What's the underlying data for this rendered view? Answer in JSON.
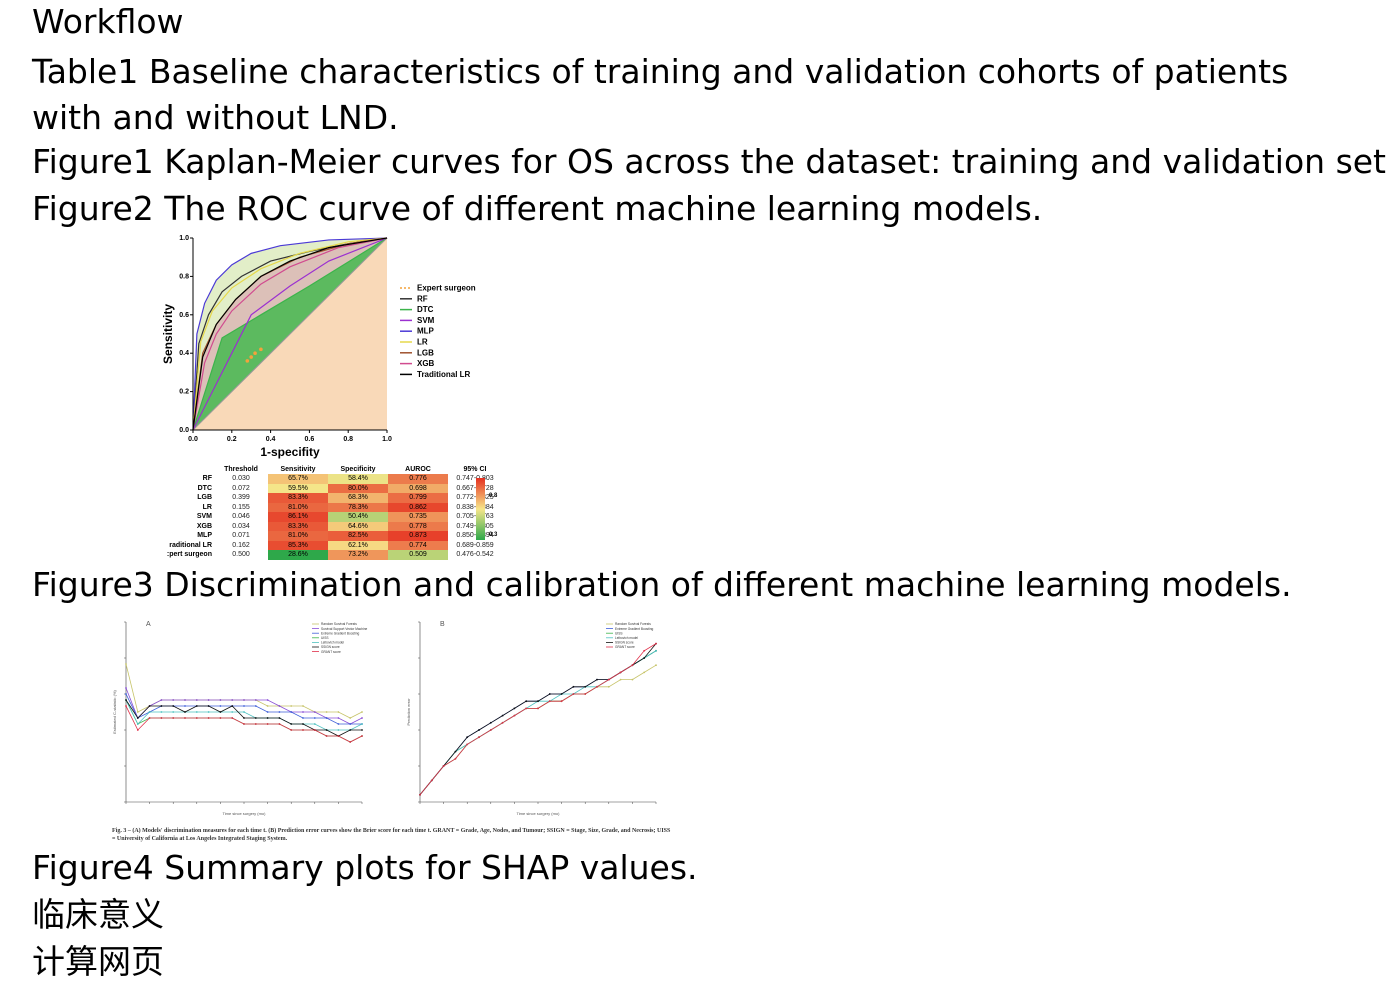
{
  "lines": {
    "workflow": "Workflow",
    "table1": "Table1 Baseline characteristics of training and validation cohorts of patients with and without LND.",
    "figure1": "Figure1 Kaplan-Meier curves for OS across the dataset: training and validation set.",
    "figure2": "Figure2 The ROC curve of different machine learning models.",
    "figure3": "Figure3 Discrimination and calibration of different machine learning models.",
    "figure4": "Figure4 Summary plots for SHAP values.",
    "clinical": "临床意义",
    "calc": "计算网页"
  },
  "chart_data": [
    {
      "type": "line",
      "title": "",
      "xlabel": "1-specifity",
      "ylabel": "Sensitivity",
      "xlim": [
        0,
        1
      ],
      "ylim": [
        0,
        1
      ],
      "xticks": [
        "0.0",
        "0.2",
        "0.4",
        "0.6",
        "0.8",
        "1.0"
      ],
      "yticks": [
        "0.0",
        "0.2",
        "0.4",
        "0.6",
        "0.8",
        "1.0"
      ],
      "legend_position": "right",
      "colors": {
        "Expert surgeon": "#f4a23c",
        "RF": "#333333",
        "DTC": "#3cb44b",
        "SVM": "#9b30d0",
        "MLP": "#4b3ad6",
        "LR": "#e6d84a",
        "LGB": "#a0522d",
        "XGB": "#d14b8f",
        "Traditional LR": "#000000"
      },
      "series": [
        {
          "name": "Expert surgeon",
          "x": [
            0.28,
            0.3,
            0.32,
            0.35
          ],
          "y": [
            0.36,
            0.38,
            0.4,
            0.42
          ]
        },
        {
          "name": "RF",
          "x": [
            0,
            0.03,
            0.08,
            0.15,
            0.25,
            0.4,
            0.6,
            0.8,
            1
          ],
          "y": [
            0,
            0.45,
            0.6,
            0.72,
            0.8,
            0.88,
            0.93,
            0.97,
            1
          ]
        },
        {
          "name": "DTC",
          "x": [
            0,
            0.15,
            0.35,
            0.6,
            1
          ],
          "y": [
            0,
            0.48,
            0.6,
            0.75,
            1
          ]
        },
        {
          "name": "SVM",
          "x": [
            0,
            0.1,
            0.2,
            0.3,
            0.5,
            0.7,
            1
          ],
          "y": [
            0,
            0.2,
            0.4,
            0.6,
            0.75,
            0.88,
            1
          ]
        },
        {
          "name": "MLP",
          "x": [
            0,
            0.02,
            0.06,
            0.12,
            0.2,
            0.3,
            0.45,
            0.7,
            1
          ],
          "y": [
            0,
            0.5,
            0.66,
            0.78,
            0.86,
            0.92,
            0.96,
            0.99,
            1
          ]
        },
        {
          "name": "LR",
          "x": [
            0,
            0.04,
            0.1,
            0.2,
            0.35,
            0.55,
            0.8,
            1
          ],
          "y": [
            0,
            0.46,
            0.62,
            0.74,
            0.84,
            0.92,
            0.98,
            1
          ]
        },
        {
          "name": "LGB",
          "x": [
            0,
            0.05,
            0.12,
            0.22,
            0.35,
            0.55,
            0.8,
            1
          ],
          "y": [
            0,
            0.4,
            0.55,
            0.68,
            0.8,
            0.9,
            0.97,
            1
          ]
        },
        {
          "name": "XGB",
          "x": [
            0,
            0.06,
            0.12,
            0.2,
            0.35,
            0.5,
            0.75,
            1
          ],
          "y": [
            0,
            0.35,
            0.5,
            0.62,
            0.76,
            0.85,
            0.95,
            1
          ]
        },
        {
          "name": "Traditional LR",
          "x": [
            0,
            0.05,
            0.12,
            0.22,
            0.35,
            0.5,
            0.7,
            1
          ],
          "y": [
            0,
            0.38,
            0.55,
            0.68,
            0.8,
            0.88,
            0.95,
            1
          ]
        }
      ]
    },
    {
      "type": "table",
      "columns": [
        "",
        "Threshold",
        "Sensitivity",
        "Specificity",
        "AUROC",
        "95% CI"
      ],
      "colorbar_ticks": [
        "0.8",
        "0.3"
      ],
      "rows": [
        [
          "RF",
          "0.030",
          "65.7%",
          "58.4%",
          "0.776",
          "0.747-0.803"
        ],
        [
          "DTC",
          "0.072",
          "59.5%",
          "80.0%",
          "0.698",
          "0.667-0.728"
        ],
        [
          "LGB",
          "0.399",
          "83.3%",
          "68.3%",
          "0.799",
          "0.772-0.825"
        ],
        [
          "LR",
          "0.155",
          "81.0%",
          "78.3%",
          "0.862",
          "0.838-0.884"
        ],
        [
          "SVM",
          "0.046",
          "86.1%",
          "50.4%",
          "0.735",
          "0.705-0.763"
        ],
        [
          "XGB",
          "0.034",
          "83.3%",
          "64.6%",
          "0.778",
          "0.749-0.805"
        ],
        [
          "MLP",
          "0.071",
          "81.0%",
          "82.5%",
          "0.873",
          "0.850-0.894"
        ],
        [
          "raditional LR",
          "0.162",
          "85.3%",
          "62.1%",
          "0.774",
          "0.689-0.859"
        ],
        [
          ":pert surgeon",
          "0.500",
          "28.6%",
          "73.2%",
          "0.509",
          "0.476-0.542"
        ]
      ]
    },
    {
      "type": "line",
      "title": "A",
      "xlabel": "Time since surgery (mo)",
      "ylabel": "Estimated C-statistic (%)",
      "legend": [
        "Random Survival Forests",
        "Survival Support Vector Machine",
        "Extreme Gradient Boosting",
        "UISS",
        "Leibovich model",
        "SSIGN score",
        "GRANT score"
      ],
      "x": [
        0,
        3,
        6,
        9,
        12,
        15,
        18,
        21,
        24,
        27,
        30,
        33,
        36,
        39,
        42,
        45,
        48,
        51,
        54,
        57,
        60
      ],
      "series": [
        {
          "name": "Random Survival Forests",
          "values": [
            0.78,
            0.7,
            0.71,
            0.72,
            0.72,
            0.72,
            0.72,
            0.72,
            0.72,
            0.72,
            0.72,
            0.72,
            0.71,
            0.71,
            0.71,
            0.71,
            0.7,
            0.7,
            0.7,
            0.69,
            0.7
          ]
        },
        {
          "name": "Survival Support Vector Machine",
          "values": [
            0.74,
            0.69,
            0.71,
            0.72,
            0.72,
            0.72,
            0.72,
            0.72,
            0.72,
            0.72,
            0.72,
            0.72,
            0.72,
            0.71,
            0.7,
            0.7,
            0.7,
            0.69,
            0.69,
            0.68,
            0.69
          ]
        },
        {
          "name": "Extreme Gradient Boosting",
          "values": [
            0.73,
            0.69,
            0.7,
            0.71,
            0.71,
            0.71,
            0.71,
            0.71,
            0.71,
            0.71,
            0.71,
            0.71,
            0.7,
            0.7,
            0.7,
            0.69,
            0.69,
            0.69,
            0.68,
            0.68,
            0.68
          ]
        },
        {
          "name": "UISS",
          "values": [
            0.72,
            0.68,
            0.69,
            0.69,
            0.69,
            0.69,
            0.69,
            0.69,
            0.69,
            0.69,
            0.68,
            0.68,
            0.68,
            0.68,
            0.67,
            0.67,
            0.67,
            0.66,
            0.66,
            0.65,
            0.66
          ]
        },
        {
          "name": "Leibovich model",
          "values": [
            0.72,
            0.68,
            0.7,
            0.7,
            0.7,
            0.7,
            0.7,
            0.7,
            0.7,
            0.7,
            0.7,
            0.69,
            0.69,
            0.69,
            0.68,
            0.68,
            0.68,
            0.67,
            0.67,
            0.67,
            0.68
          ]
        },
        {
          "name": "SSIGN score",
          "values": [
            0.72,
            0.69,
            0.71,
            0.71,
            0.71,
            0.7,
            0.71,
            0.71,
            0.7,
            0.71,
            0.69,
            0.69,
            0.69,
            0.69,
            0.68,
            0.68,
            0.67,
            0.67,
            0.66,
            0.67,
            0.67
          ]
        },
        {
          "name": "GRANT score",
          "values": [
            0.71,
            0.67,
            0.69,
            0.69,
            0.69,
            0.69,
            0.69,
            0.69,
            0.69,
            0.69,
            0.68,
            0.68,
            0.68,
            0.68,
            0.67,
            0.67,
            0.67,
            0.66,
            0.66,
            0.65,
            0.66
          ]
        }
      ]
    },
    {
      "type": "line",
      "title": "B",
      "xlabel": "Time since surgery (mo)",
      "ylabel": "Prediction error",
      "legend": [
        "Random Survival Forests",
        "Extreme Gradient Boosting",
        "UISS",
        "Leibovich model",
        "SSIGN score",
        "GRANT score"
      ],
      "x": [
        0,
        3,
        6,
        9,
        12,
        15,
        18,
        21,
        24,
        27,
        30,
        33,
        36,
        39,
        42,
        45,
        48,
        51,
        54,
        57,
        60
      ],
      "series": [
        {
          "name": "Random Survival Forests",
          "values": [
            0.01,
            0.03,
            0.05,
            0.07,
            0.08,
            0.09,
            0.1,
            0.11,
            0.12,
            0.13,
            0.13,
            0.14,
            0.14,
            0.15,
            0.15,
            0.16,
            0.16,
            0.17,
            0.17,
            0.18,
            0.19
          ]
        },
        {
          "name": "Extreme Gradient Boosting",
          "values": [
            0.01,
            0.03,
            0.05,
            0.07,
            0.09,
            0.1,
            0.11,
            0.12,
            0.13,
            0.14,
            0.14,
            0.15,
            0.15,
            0.16,
            0.16,
            0.17,
            0.17,
            0.18,
            0.19,
            0.2,
            0.21
          ]
        },
        {
          "name": "UISS",
          "values": [
            0.01,
            0.03,
            0.05,
            0.06,
            0.08,
            0.09,
            0.1,
            0.11,
            0.12,
            0.13,
            0.13,
            0.14,
            0.14,
            0.15,
            0.15,
            0.16,
            0.17,
            0.18,
            0.19,
            0.2,
            0.21
          ]
        },
        {
          "name": "Leibovich model",
          "values": [
            0.01,
            0.03,
            0.05,
            0.07,
            0.08,
            0.09,
            0.1,
            0.11,
            0.12,
            0.13,
            0.14,
            0.14,
            0.15,
            0.15,
            0.16,
            0.16,
            0.17,
            0.18,
            0.19,
            0.2,
            0.21
          ]
        },
        {
          "name": "SSIGN score",
          "values": [
            0.01,
            0.03,
            0.05,
            0.07,
            0.09,
            0.1,
            0.11,
            0.12,
            0.13,
            0.14,
            0.14,
            0.15,
            0.15,
            0.16,
            0.16,
            0.17,
            0.17,
            0.18,
            0.19,
            0.2,
            0.22
          ]
        },
        {
          "name": "GRANT score",
          "values": [
            0.01,
            0.03,
            0.05,
            0.06,
            0.08,
            0.09,
            0.1,
            0.11,
            0.12,
            0.13,
            0.13,
            0.14,
            0.14,
            0.15,
            0.15,
            0.16,
            0.17,
            0.18,
            0.19,
            0.21,
            0.22
          ]
        }
      ]
    }
  ],
  "figure3_caption": "Fig. 3 – (A) Models' discrimination measures for each time t. (B) Prediction error curves show the Brier score for each time t. GRANT = Grade, Age, Nodes, and Tumour; SSIGN = Stage, Size, Grade, and Necrosis; UISS = University of California at Los Angeles Integrated Staging System."
}
